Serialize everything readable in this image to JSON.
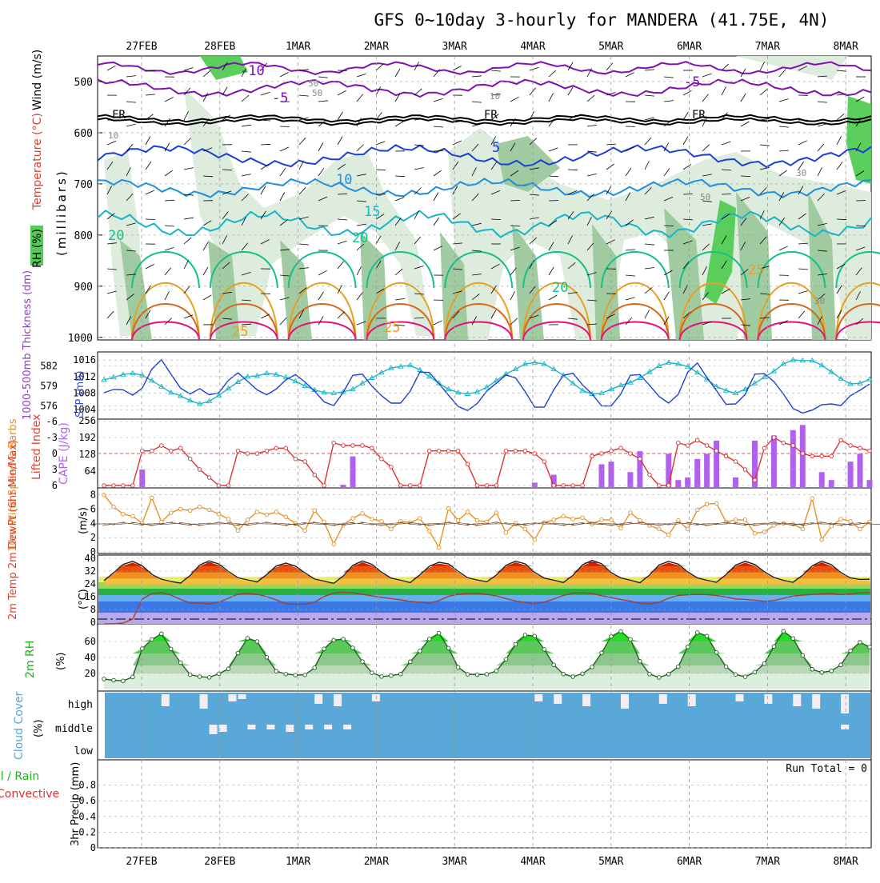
{
  "title": "GFS 0~10day 3-hourly for MANDERA (41.75E, 4N)",
  "dates": [
    "27FEB",
    "28FEB",
    "1MAR",
    "2MAR",
    "3MAR",
    "4MAR",
    "5MAR",
    "6MAR",
    "7MAR",
    "8MAR"
  ],
  "colors": {
    "purple": "#8010b0",
    "black": "#000000",
    "blue": "#1c3fd6",
    "lightblue": "#1c8fe0",
    "cyan": "#16b5c8",
    "teal": "#14c08a",
    "orange": "#e8a020",
    "darkorange": "#d86818",
    "magenta": "#e01080",
    "rh_green": "#52cc52",
    "rh_mid": "#9cc89c",
    "rh_light": "#dcebdc",
    "cape": "#b060ee",
    "li": "#e03030",
    "wind": "#e89020",
    "dewpt": "#a04030",
    "cloud": "#5aa8d8",
    "cloud_clear": "#f2eef6"
  },
  "panels": {
    "upper": {
      "ylabel_wind": "Wind (m/s)",
      "ylabel_temp": "Temperature (°C)",
      "ylabel_rh": "RH (%)",
      "ylabel_pressure": "(millibars)",
      "yticks": [
        "500",
        "600",
        "700",
        "800",
        "900",
        "1000"
      ],
      "labels": [
        "-10",
        "-5",
        "FR",
        "FR",
        "FR",
        "-5",
        "5",
        "10",
        "15",
        "20",
        "20",
        "20",
        "25",
        "25",
        "25",
        "50",
        "50",
        "10",
        "10",
        "30",
        "30",
        "50"
      ]
    },
    "slp": {
      "ylabel_thick": "1000-500mb Thickness (dm)",
      "ylabel_slp": "SLP (mb)",
      "left_ticks": [
        "582",
        "579",
        "576"
      ],
      "right_ticks": [
        "1016",
        "1012",
        "1008",
        "1004"
      ]
    },
    "cape": {
      "ylabel_li": "Lifted Index",
      "ylabel_cape": "CAPE (J/kg)",
      "left_ticks": [
        "-6",
        "-3",
        "0",
        "3",
        "6"
      ],
      "right_ticks": [
        "256",
        "192",
        "128",
        "64"
      ]
    },
    "wind10": {
      "ylabel": "10m Wind Speed & Barbs",
      "ylabel_unit": "(m/s)",
      "ticks": [
        "8",
        "6",
        "4",
        "2",
        "0"
      ]
    },
    "temp2m": {
      "ylabel": "2m Temp 2m DewPt (6hr Min/Max)",
      "ylabel_unit": "(°C)",
      "ticks": [
        "40",
        "32",
        "24",
        "16",
        "8",
        "0"
      ]
    },
    "rh2m": {
      "ylabel": "2m RH",
      "ylabel_unit": "(%)",
      "ticks": [
        "60",
        "40",
        "20"
      ]
    },
    "cloud": {
      "ylabel": "Cloud Cover",
      "ylabel_unit": "(%)",
      "levels": [
        "high",
        "middle",
        "low"
      ]
    },
    "precip": {
      "ylabel_total": "Total / Rain",
      "ylabel_conv": "Convective",
      "ylabel_unit": "3hr Precip (mm)",
      "ticks": [
        "0.8",
        "0.6",
        "0.4",
        "0.2",
        "0"
      ],
      "run_total": "Run Total = 0"
    }
  },
  "chart_data": {
    "type": "meteogram",
    "title": "GFS 0~10day 3-hourly for MANDERA (41.75E, 4N)",
    "time_axis": {
      "start": "26FEB 12Z",
      "step_hours": 3,
      "points": 81
    },
    "thickness_dm": [
      579.9,
      580.3,
      580.7,
      580.9,
      580.6,
      579.8,
      578.9,
      578.0,
      577.5,
      576.8,
      576.3,
      576.7,
      577.6,
      578.6,
      579.6,
      580.4,
      580.5,
      580.9,
      580.7,
      580.3,
      579.7,
      579.0,
      578.4,
      578.0,
      577.9,
      578.1,
      578.5,
      579.4,
      580.2,
      581.0,
      581.7,
      581.9,
      582.1,
      581.4,
      580.4,
      579.4,
      578.5,
      578.0,
      577.8,
      578.1,
      578.8,
      579.8,
      580.8,
      581.5,
      582.3,
      582.5,
      582.3,
      581.5,
      580.6,
      579.4,
      578.3,
      577.8,
      577.9,
      578.5,
      579.1,
      579.5,
      580.2,
      581.1,
      582.0,
      582.5,
      582.3,
      581.9,
      581.0,
      580.0,
      578.9,
      578.3,
      577.9,
      578.5,
      579.4,
      580.3,
      581.2,
      582.3,
      582.9,
      582.8,
      582.8,
      582.1,
      581.1,
      580.1,
      579.3,
      579.4,
      580.0
    ],
    "slp_mb": [
      1008.1,
      1008.9,
      1008.8,
      1007.5,
      1009.2,
      1013.8,
      1016.1,
      1012.6,
      1009.2,
      1007.8,
      1009.1,
      1007.6,
      1008.1,
      1011.1,
      1012.9,
      1010.9,
      1008.8,
      1007.6,
      1009.0,
      1011.2,
      1012.5,
      1010.7,
      1008.5,
      1005.9,
      1005.0,
      1008.2,
      1012.3,
      1012.6,
      1009.7,
      1007.4,
      1005.6,
      1005.6,
      1008.5,
      1013.1,
      1013.0,
      1010.3,
      1007.5,
      1004.8,
      1003.8,
      1005.5,
      1008.5,
      1010.4,
      1012.4,
      1011.7,
      1008.4,
      1004.6,
      1004.6,
      1008.8,
      1012.3,
      1012.8,
      1010.0,
      1007.8,
      1004.9,
      1004.9,
      1007.8,
      1012.3,
      1012.5,
      1009.9,
      1007.2,
      1005.6,
      1007.7,
      1013.1,
      1015.3,
      1011.8,
      1008.6,
      1005.3,
      1005.4,
      1007.7,
      1012.6,
      1012.7,
      1010.8,
      1007.8,
      1004.3,
      1003.2,
      1003.9,
      1005.2,
      1005.4,
      1005.0,
      1007.4,
      1008.7,
      1010.2
    ],
    "lifted_index": [
      6.0,
      6.0,
      6.0,
      6.0,
      -0.5,
      -0.5,
      -1.5,
      -0.5,
      -1.0,
      1.0,
      3.0,
      4.5,
      6.0,
      6.0,
      -0.5,
      0.0,
      0.0,
      -0.5,
      -1.0,
      -1.0,
      1.0,
      1.5,
      4.0,
      6.0,
      -2.0,
      -1.5,
      -1.5,
      -1.5,
      -1.0,
      1.0,
      2.5,
      6.0,
      6.0,
      6.0,
      -0.5,
      -0.5,
      -0.5,
      -0.5,
      2.0,
      6.0,
      6.0,
      6.0,
      -0.5,
      -0.5,
      -0.5,
      0.0,
      1.5,
      6.0,
      6.0,
      6.0,
      6.0,
      0.5,
      0.0,
      -0.5,
      -1.0,
      0.0,
      1.0,
      4.0,
      6.0,
      6.0,
      -2.0,
      -1.5,
      -2.5,
      -1.5,
      -0.5,
      0.5,
      1.5,
      3.0,
      5.0,
      -1.0,
      -3.0,
      -2.0,
      -1.5,
      0.0,
      0.5,
      0.5,
      0.5,
      -2.5,
      -1.5,
      -1.0,
      -0.5
    ],
    "cape_jkg": [
      0,
      0,
      0,
      0,
      70,
      0,
      0,
      0,
      0,
      0,
      0,
      0,
      0,
      0,
      0,
      0,
      0,
      0,
      0,
      0,
      0,
      0,
      0,
      0,
      0,
      12,
      120,
      0,
      0,
      0,
      0,
      0,
      0,
      0,
      0,
      0,
      0,
      0,
      0,
      0,
      0,
      0,
      0,
      0,
      0,
      0,
      0,
      0,
      0,
      0,
      0,
      0,
      0,
      0,
      0,
      0,
      0,
      0,
      0,
      130,
      30,
      40,
      30,
      0,
      0,
      0,
      0,
      0,
      0,
      0,
      0,
      0,
      0,
      0,
      0,
      0,
      0,
      0,
      0,
      0,
      0
    ],
    "wind10_ms": [
      8.0,
      6.3,
      5.3,
      5.0,
      4.0,
      7.6,
      4.2,
      5.5,
      6.0,
      5.8,
      6.3,
      5.9,
      5.3,
      4.6,
      3.0,
      4.5,
      5.6,
      5.2,
      5.6,
      4.9,
      4.0,
      3.0,
      5.8,
      4.2,
      1.1,
      3.8,
      4.7,
      5.4,
      4.6,
      4.3,
      3.2,
      4.3,
      4.1,
      4.7,
      2.9,
      0.6,
      6.1,
      4.4,
      5.6,
      4.4,
      4.2,
      5.5,
      2.7,
      4.0,
      3.2,
      1.7,
      4.1,
      4.5,
      5.0,
      4.6,
      4.8,
      3.9,
      4.5,
      4.5,
      3.3,
      5.5,
      4.4,
      3.7,
      3.2,
      2.4,
      4.4,
      3.2,
      5.9,
      6.7,
      6.8,
      4.2,
      4.5,
      4.5,
      2.6,
      2.8,
      3.7,
      4.0,
      3.9,
      3.2,
      7.5,
      1.7,
      3.6,
      4.6,
      4.3,
      3.2,
      4.2
    ],
    "temp2m_c": [
      26.0,
      31.0,
      36.2,
      38.1,
      35.3,
      29.9,
      26.9,
      25.5,
      24.5,
      29.2,
      35.8,
      38.4,
      36.4,
      31.8,
      27.8,
      26.5,
      25.2,
      29.8,
      35.2,
      37.0,
      35.1,
      30.9,
      27.0,
      25.7,
      24.3,
      28.9,
      35.6,
      38.3,
      36.2,
      31.3,
      27.6,
      26.3,
      24.8,
      29.6,
      35.0,
      37.5,
      36.5,
      31.9,
      27.8,
      26.4,
      25.3,
      29.5,
      35.6,
      38.2,
      36.5,
      31.2,
      27.6,
      26.3,
      24.9,
      29.3,
      35.9,
      38.7,
      36.6,
      31.0,
      27.7,
      26.3,
      24.7,
      29.5,
      35.8,
      38.1,
      36.4,
      31.5,
      27.7,
      26.3,
      25.0,
      29.8,
      35.7,
      38.1,
      36.1,
      31.6,
      28.0,
      26.2,
      25.0,
      29.4,
      35.3,
      38.2,
      36.0,
      31.1,
      27.7,
      26.8,
      26.9
    ],
    "dewpt2m_c": [
      -1.0,
      -1.0,
      -0.5,
      2.0,
      14.5,
      18.0,
      18.5,
      17.0,
      14.3,
      12.0,
      12.0,
      11.5,
      12.5,
      15.0,
      17.5,
      18.0,
      17.5,
      16.0,
      14.0,
      11.6,
      11.2,
      11.3,
      12.5,
      16.1,
      18.2,
      18.8,
      18.4,
      17.5,
      16.5,
      15.6,
      14.8,
      14.0,
      13.0,
      12.5,
      12.0,
      13.5,
      16.2,
      17.5,
      17.9,
      18.1,
      17.5,
      16.5,
      14.8,
      13.3,
      12.4,
      11.8,
      12.6,
      14.5,
      16.8,
      18.2,
      18.4,
      18.0,
      16.6,
      15.5,
      14.2,
      13.2,
      12.0,
      11.5,
      12.5,
      15.0,
      16.8,
      17.2,
      17.5,
      17.3,
      16.7,
      15.8,
      14.6,
      14.3,
      13.8,
      13.1,
      13.6,
      15.0,
      16.4,
      17.0,
      17.4,
      17.8,
      18.0,
      17.3,
      17.7,
      18.4,
      18.6
    ],
    "rh2m_pct": [
      13.0,
      11.5,
      10.8,
      15.5,
      51.1,
      62.5,
      69.7,
      50.6,
      33.5,
      18.5,
      16.0,
      15.1,
      19.6,
      25.7,
      45.5,
      64.0,
      60.0,
      40.2,
      22.8,
      19.3,
      18.0,
      18.3,
      27.1,
      50.8,
      61.7,
      63.0,
      52.0,
      34.9,
      20.9,
      16.1,
      17.3,
      19.2,
      34.7,
      48.0,
      63.0,
      70.4,
      51.6,
      27.8,
      19.0,
      18.5,
      19.1,
      23.1,
      37.6,
      56.5,
      68.0,
      66.8,
      50.1,
      30.8,
      19.3,
      16.0,
      19.7,
      28.1,
      45.7,
      66.3,
      72.6,
      62.6,
      35.3,
      19.3,
      15.0,
      19.2,
      28.5,
      53.2,
      71.1,
      66.8,
      46.3,
      28.4,
      18.8,
      15.9,
      21.6,
      32.3,
      53.8,
      72.7,
      63.8,
      42.6,
      25.2,
      21.2,
      23.3,
      30.7,
      48.4,
      59.0,
      53.0
    ],
    "cloud_high_pct": [
      100,
      100,
      100,
      100,
      60,
      100,
      100,
      100,
      100,
      100,
      100,
      100,
      100,
      100,
      100,
      100,
      80,
      60,
      60,
      100,
      100,
      100,
      100,
      100,
      100,
      60,
      100,
      100,
      100,
      100,
      100,
      100,
      100,
      100,
      100,
      100,
      100,
      100,
      100,
      100,
      100,
      100,
      100,
      100,
      100,
      100,
      100,
      100,
      100,
      100,
      100,
      100,
      100,
      100,
      100,
      100,
      100,
      100,
      100,
      100,
      100,
      100,
      100,
      100,
      100,
      100,
      100,
      100,
      100,
      100,
      100,
      100,
      100,
      100,
      100,
      100,
      100,
      100,
      100,
      100,
      100
    ],
    "precip_mm": {
      "total": 0,
      "convective": 0
    },
    "axes": {
      "pressure_mb": [
        1000,
        900,
        800,
        700,
        600,
        500
      ],
      "thickness_dm": [
        576,
        579,
        582
      ],
      "slp_mb": [
        1004,
        1016
      ],
      "li": [
        -6,
        6
      ],
      "cape": [
        0,
        256
      ],
      "wind10": [
        0,
        8
      ],
      "temp2m": [
        0,
        40
      ],
      "rh2m": [
        0,
        80
      ],
      "precip": [
        0,
        1
      ]
    }
  }
}
